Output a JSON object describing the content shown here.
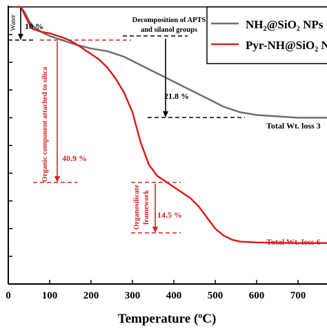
{
  "chart_data": {
    "type": "line",
    "xlabel": "Temperature (",
    "xlabel_unit_sup": "o",
    "xlabel_unit": "C)",
    "ylabel": "",
    "xlim": [
      0,
      770
    ],
    "ylim": [
      0,
      100
    ],
    "x_ticks": [
      0,
      100,
      200,
      300,
      400,
      500,
      600,
      700
    ],
    "y_ticks": [
      0,
      10,
      20,
      30,
      40,
      50,
      60,
      70,
      80,
      90,
      100
    ],
    "legend_position": "top-right",
    "series": [
      {
        "name": "NH₂@SiO₂ NPs",
        "color": "#6e6e6e",
        "x": [
          20,
          30,
          40,
          50,
          60,
          80,
          100,
          130,
          160,
          200,
          240,
          280,
          320,
          360,
          400,
          440,
          480,
          520,
          560,
          600,
          650,
          700,
          770
        ],
        "y": [
          100,
          100,
          98,
          95,
          93,
          91,
          89.5,
          88,
          86.5,
          85,
          84,
          82,
          79,
          76,
          73,
          70,
          67,
          64,
          62,
          61,
          60.5,
          60,
          60
        ]
      },
      {
        "name": "Pyr-NH@SiO₂ NPs",
        "color": "#d61f1f",
        "x": [
          20,
          30,
          40,
          50,
          60,
          80,
          100,
          120,
          140,
          160,
          180,
          200,
          220,
          240,
          260,
          280,
          300,
          320,
          340,
          360,
          380,
          400,
          420,
          440,
          460,
          480,
          500,
          520,
          540,
          560,
          600,
          650,
          700,
          770
        ],
        "y": [
          100,
          100,
          97,
          94,
          92,
          91,
          90.5,
          89.5,
          88.5,
          87,
          85,
          83,
          81,
          78,
          74,
          69,
          62,
          51,
          43,
          39,
          37,
          35,
          33,
          31,
          28,
          24,
          20,
          17.5,
          16,
          15.3,
          15,
          14.9,
          14.8,
          14.8
        ]
      }
    ],
    "annotations": [
      {
        "id": "water",
        "text": "Water",
        "color": "#000000"
      },
      {
        "id": "water-loss",
        "text": "10 %",
        "color": "#000000"
      },
      {
        "id": "apts",
        "text": "Decomposition of APTS",
        "color": "#000000"
      },
      {
        "id": "silanol",
        "text": "and silanol groups",
        "color": "#000000"
      },
      {
        "id": "loss-218",
        "text": "21.8 %",
        "color": "#000000"
      },
      {
        "id": "organic",
        "text": "Organic component attached to silica",
        "color": "#d61f1f"
      },
      {
        "id": "loss-409",
        "text": "40.9 %",
        "color": "#d61f1f"
      },
      {
        "id": "organosilicate-1",
        "text": "Organosilicate",
        "color": "#d61f1f"
      },
      {
        "id": "organosilicate-2",
        "text": "framework",
        "color": "#d61f1f"
      },
      {
        "id": "loss-145",
        "text": "14.5 %",
        "color": "#d61f1f"
      },
      {
        "id": "total-gray",
        "text": "Total Wt. loss 3",
        "color": "#000000"
      },
      {
        "id": "total-red",
        "text": "Total Wt. loss 6",
        "color": "#d61f1f"
      }
    ]
  }
}
